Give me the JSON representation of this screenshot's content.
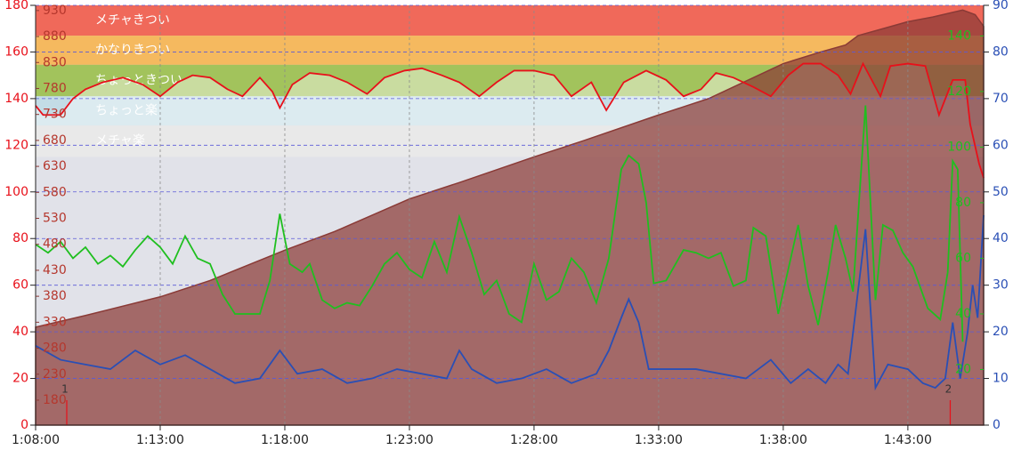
{
  "chart_data": {
    "type": "line",
    "xlim": [
      68,
      106.04
    ],
    "xticks": [
      {
        "value": 68,
        "label": "1:08:00"
      },
      {
        "value": 73,
        "label": "1:13:00"
      },
      {
        "value": 78,
        "label": "1:18:00"
      },
      {
        "value": 83,
        "label": "1:23:00"
      },
      {
        "value": 88,
        "label": "1:28:00"
      },
      {
        "value": 93,
        "label": "1:33:00"
      },
      {
        "value": 98,
        "label": "1:38:00"
      },
      {
        "value": 103,
        "label": "1:43:00"
      }
    ],
    "ylim": [
      0,
      180
    ],
    "yticks": [
      0,
      20,
      40,
      60,
      80,
      100,
      120,
      140,
      160,
      180
    ],
    "y4lim": [
      132,
      940
    ],
    "y4ticks": [
      180,
      230,
      280,
      330,
      380,
      430,
      480,
      530,
      580,
      630,
      680,
      730,
      780,
      830,
      880,
      930
    ],
    "y3lim": [
      0,
      151
    ],
    "y3ticks": [
      20,
      40,
      60,
      80,
      100,
      120,
      140
    ],
    "y2lim": [
      0,
      90
    ],
    "y2ticks": [
      0,
      10,
      20,
      30,
      40,
      50,
      60,
      70,
      80,
      90
    ],
    "grid": true,
    "zones": [
      {
        "label": "メチャきつい",
        "from": 167,
        "to": 180,
        "color": "#f0695a"
      },
      {
        "label": "かなりきつい",
        "from": 154.5,
        "to": 167,
        "color": "#f5b95f"
      },
      {
        "label": "ちょっときつい",
        "from": 141,
        "to": 154.5,
        "color": "#a2c35c"
      },
      {
        "label": "ちょっと楽",
        "from": 128.5,
        "to": 141,
        "color": "#c3dce6"
      },
      {
        "label": "メチャ楽",
        "from": 115,
        "to": 128.5,
        "color": "#d9d9d9"
      }
    ],
    "annotations": [
      {
        "x": 69.25,
        "label": "1"
      },
      {
        "x": 104.7,
        "label": "2"
      }
    ],
    "series": [
      {
        "style": "area",
        "color": "#8a3a36",
        "axis": "y",
        "x": [
          68,
          70,
          73,
          75,
          78,
          80,
          83,
          85,
          88,
          90,
          93,
          95,
          98,
          99.5,
          100.5,
          101,
          102,
          103,
          104,
          105.2,
          105.7,
          106.04
        ],
        "values": [
          42,
          47,
          55,
          62,
          75,
          83,
          97,
          104,
          115,
          122,
          133,
          140,
          155,
          160,
          163,
          167,
          170,
          173,
          175,
          178,
          176,
          171
        ]
      },
      {
        "style": "line",
        "color": "#1fbf1f",
        "axis": "y3",
        "x": [
          68,
          68.5,
          69,
          69.5,
          70,
          70.5,
          71,
          71.5,
          72,
          72.5,
          73,
          73.5,
          74,
          74.5,
          75,
          75.5,
          76,
          76.5,
          77,
          77.4,
          77.8,
          78.2,
          78.7,
          79,
          79.5,
          80,
          80.5,
          81,
          81.5,
          82,
          82.5,
          83,
          83.5,
          84,
          84.5,
          85,
          85.5,
          86,
          86.5,
          87,
          87.5,
          88,
          88.5,
          89,
          89.5,
          90,
          90.5,
          91,
          91.5,
          91.8,
          92.2,
          92.5,
          92.8,
          93.3,
          94,
          94.5,
          95,
          95.5,
          96,
          96.5,
          96.8,
          97.3,
          97.8,
          98.3,
          98.6,
          99,
          99.4,
          99.8,
          100.1,
          100.5,
          100.8,
          101.3,
          101.7,
          102,
          102.4,
          102.8,
          103.2,
          103.8,
          104.3,
          104.6,
          104.8,
          105,
          105.2
        ],
        "values": [
          65,
          62,
          66,
          60,
          64,
          58,
          61,
          57,
          63,
          68,
          64,
          58,
          68,
          60,
          58,
          47,
          40,
          40,
          40,
          52,
          76,
          58,
          55,
          58,
          45,
          42,
          44,
          43,
          50,
          58,
          62,
          56,
          53,
          66,
          55,
          75,
          62,
          47,
          52,
          40,
          37,
          58,
          45,
          48,
          60,
          55,
          44,
          60,
          92,
          97,
          94,
          80,
          51,
          52,
          63,
          62,
          60,
          62,
          50,
          52,
          71,
          68,
          40,
          60,
          72,
          50,
          36,
          55,
          72,
          60,
          48,
          115,
          45,
          72,
          70,
          62,
          57,
          42,
          38,
          55,
          95,
          92,
          30
        ]
      },
      {
        "style": "line",
        "color": "#2a4fb5",
        "axis": "y2",
        "x": [
          68,
          69,
          70,
          71,
          72,
          73,
          74,
          75,
          76,
          77,
          77.8,
          78.5,
          79.5,
          80.5,
          81.5,
          82.5,
          83.5,
          84.5,
          85,
          85.5,
          86.5,
          87.5,
          88.5,
          89.5,
          90.5,
          91,
          91.5,
          91.8,
          92.2,
          92.6,
          93.5,
          94.5,
          95.5,
          96.5,
          97.5,
          98.3,
          99,
          99.7,
          100.2,
          100.6,
          101.3,
          101.7,
          102.2,
          103,
          103.6,
          104.1,
          104.5,
          104.8,
          105.1,
          105.4,
          105.6,
          105.8,
          106.04
        ],
        "values": [
          17,
          14,
          13,
          12,
          16,
          13,
          15,
          12,
          9,
          10,
          16,
          11,
          12,
          9,
          10,
          12,
          11,
          10,
          16,
          12,
          9,
          10,
          12,
          9,
          11,
          16,
          23,
          27,
          22,
          12,
          12,
          12,
          11,
          10,
          14,
          9,
          12,
          9,
          13,
          11,
          42,
          8,
          13,
          12,
          9,
          8,
          10,
          22,
          10,
          20,
          30,
          23,
          45
        ]
      },
      {
        "style": "line",
        "color": "#e8101a",
        "axis": "y",
        "x": [
          68,
          68.3,
          69,
          69.5,
          70,
          70.7,
          71.5,
          72.3,
          73,
          73.7,
          74.3,
          75,
          75.7,
          76.3,
          77,
          77.5,
          77.8,
          78.3,
          79,
          79.8,
          80.5,
          81.3,
          82,
          82.8,
          83.5,
          84.3,
          85,
          85.8,
          86.5,
          87.2,
          88,
          88.8,
          89.5,
          90.3,
          90.9,
          91.6,
          92.5,
          93.3,
          94,
          94.7,
          95.3,
          96,
          96.8,
          97.5,
          98.2,
          98.8,
          99.5,
          100.2,
          100.7,
          101.2,
          101.9,
          102.3,
          103,
          103.7,
          104.25,
          104.8,
          105.3,
          105.5,
          105.86,
          106.04
        ],
        "values": [
          137,
          133,
          133,
          140,
          144,
          147,
          149,
          146,
          141,
          147,
          150,
          149,
          144,
          141,
          149,
          143,
          136,
          146,
          151,
          150,
          147,
          142,
          149,
          152,
          153,
          150,
          147,
          141,
          147,
          152,
          152,
          150,
          141,
          147,
          135,
          147,
          152,
          148,
          141,
          144,
          151,
          149,
          145,
          141,
          150,
          155,
          155,
          150,
          142,
          155,
          141,
          154,
          155,
          154,
          133,
          148,
          148,
          129,
          112,
          106
        ]
      }
    ]
  }
}
